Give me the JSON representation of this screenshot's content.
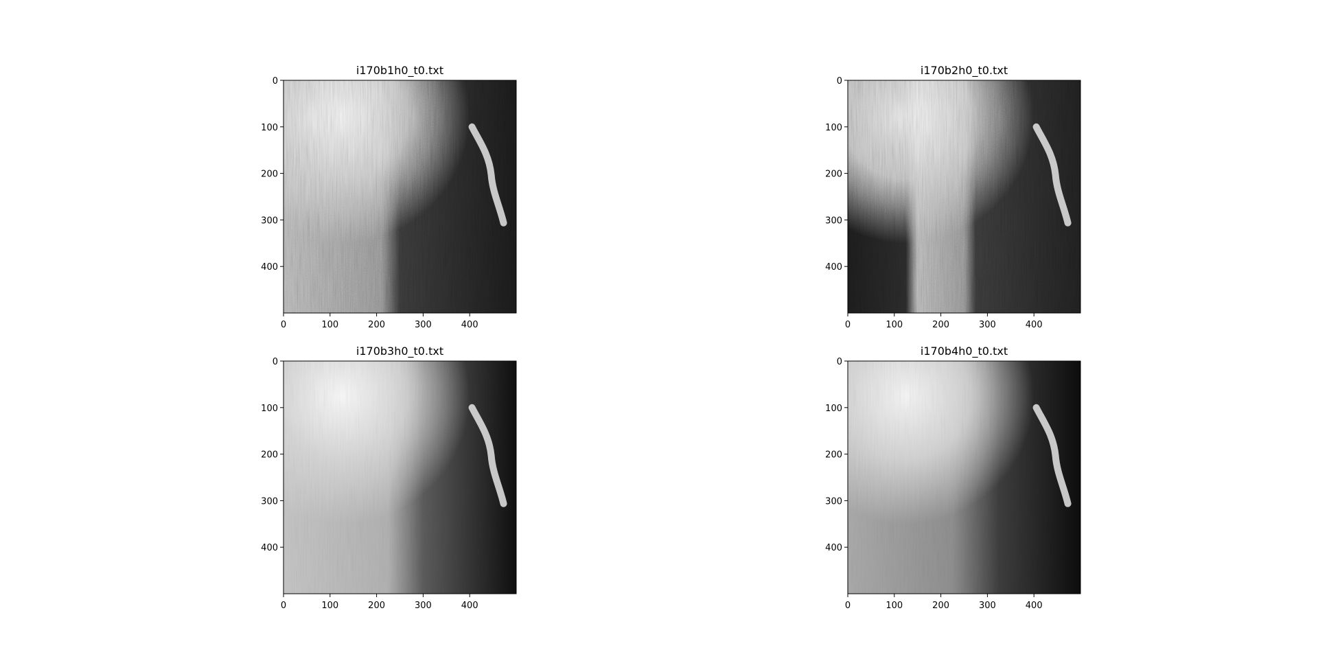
{
  "figure": {
    "background": "#ffffff",
    "colormap": "gray"
  },
  "chart_data": [
    {
      "type": "heatmap",
      "title": "i170b1h0_t0.txt",
      "xlim": [
        0,
        500
      ],
      "ylim": [
        500,
        0
      ],
      "x_ticks": [
        0,
        100,
        200,
        300,
        400
      ],
      "y_ticks": [
        0,
        100,
        200,
        300,
        400
      ],
      "grid": false,
      "legend": "none",
      "colormap": "gray"
    },
    {
      "type": "heatmap",
      "title": "i170b2h0_t0.txt",
      "xlim": [
        0,
        500
      ],
      "ylim": [
        500,
        0
      ],
      "x_ticks": [
        0,
        100,
        200,
        300,
        400
      ],
      "y_ticks": [
        0,
        100,
        200,
        300,
        400
      ],
      "grid": false,
      "legend": "none",
      "colormap": "gray"
    },
    {
      "type": "heatmap",
      "title": "i170b3h0_t0.txt",
      "xlim": [
        0,
        500
      ],
      "ylim": [
        500,
        0
      ],
      "x_ticks": [
        0,
        100,
        200,
        300,
        400
      ],
      "y_ticks": [
        0,
        100,
        200,
        300,
        400
      ],
      "grid": false,
      "legend": "none",
      "colormap": "gray"
    },
    {
      "type": "heatmap",
      "title": "i170b4h0_t0.txt",
      "xlim": [
        0,
        500
      ],
      "ylim": [
        500,
        0
      ],
      "x_ticks": [
        0,
        100,
        200,
        300,
        400
      ],
      "y_ticks": [
        0,
        100,
        200,
        300,
        400
      ],
      "grid": false,
      "legend": "none",
      "colormap": "gray"
    }
  ]
}
